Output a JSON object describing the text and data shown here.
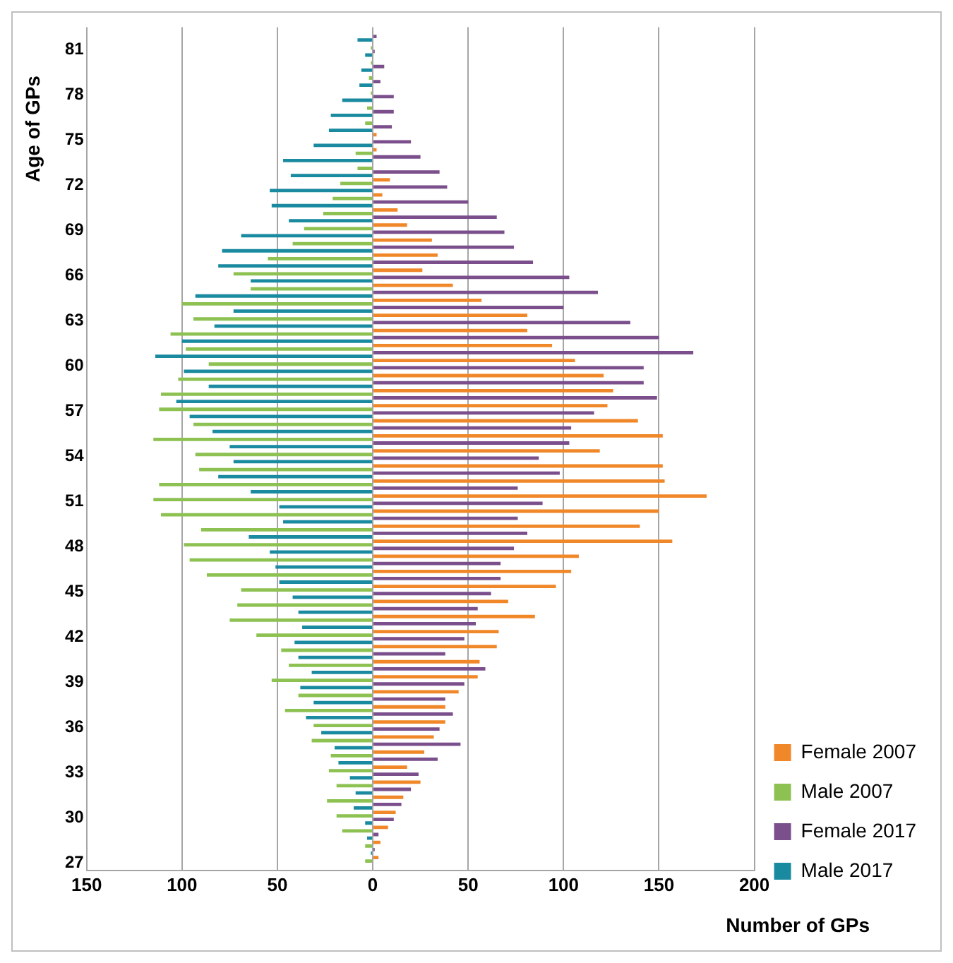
{
  "chart_data": {
    "type": "bar",
    "orientation": "horizontal",
    "xlabel": "Number of GPs",
    "ylabel": "Age of GPs",
    "categories": [
      null,
      "81",
      null,
      null,
      "78",
      null,
      null,
      "75",
      null,
      null,
      "72",
      null,
      null,
      "69",
      null,
      null,
      "66",
      null,
      null,
      "63",
      null,
      null,
      "60",
      null,
      null,
      "57",
      null,
      null,
      "54",
      null,
      null,
      "51",
      null,
      null,
      "48",
      null,
      null,
      "45",
      null,
      null,
      "42",
      null,
      null,
      "39",
      null,
      null,
      "36",
      null,
      null,
      "33",
      null,
      null,
      "30",
      null,
      null,
      "27"
    ],
    "series": [
      {
        "name": "Female 2007",
        "color": "#f0882a",
        "values": [
          0,
          0,
          0,
          0,
          0,
          0,
          0,
          2,
          2,
          0,
          9,
          5,
          13,
          18,
          31,
          34,
          26,
          42,
          57,
          81,
          81,
          94,
          106,
          121,
          126,
          123,
          139,
          152,
          119,
          152,
          153,
          175,
          150,
          140,
          157,
          108,
          104,
          96,
          71,
          85,
          66,
          65,
          56,
          55,
          45,
          38,
          38,
          32,
          27,
          18,
          25,
          16,
          12,
          8,
          4,
          3
        ]
      },
      {
        "name": "Male 2007",
        "color": "#8dc152",
        "values": [
          0,
          -1,
          -1,
          -2,
          -1,
          -3,
          -4,
          0,
          -9,
          -8,
          -17,
          -21,
          -26,
          -36,
          -42,
          -55,
          -73,
          -64,
          -100,
          -94,
          -106,
          -98,
          -86,
          -102,
          -111,
          -112,
          -94,
          -115,
          -93,
          -91,
          -112,
          -115,
          -111,
          -90,
          -99,
          -96,
          -87,
          -69,
          -71,
          -75,
          -61,
          -48,
          -44,
          -53,
          -39,
          -46,
          -31,
          -32,
          -22,
          -23,
          -19,
          -24,
          -19,
          -16,
          -4,
          -4
        ]
      },
      {
        "name": "Female 2017",
        "color": "#7a4f8c",
        "values": [
          2,
          1,
          6,
          4,
          11,
          11,
          10,
          20,
          25,
          35,
          39,
          50,
          65,
          69,
          74,
          84,
          103,
          118,
          100,
          135,
          150,
          168,
          142,
          142,
          149,
          116,
          104,
          103,
          87,
          98,
          76,
          89,
          76,
          81,
          74,
          67,
          67,
          62,
          55,
          54,
          48,
          38,
          59,
          48,
          38,
          42,
          35,
          46,
          34,
          24,
          20,
          15,
          11,
          3,
          1,
          0
        ]
      },
      {
        "name": "Male 2017",
        "color": "#1a8aa0",
        "values": [
          -8,
          -4,
          -6,
          -7,
          -16,
          -22,
          -23,
          -31,
          -47,
          -43,
          -54,
          -53,
          -44,
          -69,
          -79,
          -81,
          -64,
          -93,
          -73,
          -83,
          -100,
          -114,
          -99,
          -86,
          -103,
          -96,
          -84,
          -75,
          -73,
          -81,
          -64,
          -49,
          -47,
          -65,
          -54,
          -51,
          -49,
          -42,
          -39,
          -37,
          -41,
          -39,
          -32,
          -38,
          -31,
          -35,
          -27,
          -20,
          -18,
          -12,
          -9,
          -10,
          -4,
          -3,
          -1,
          0
        ]
      }
    ],
    "xlim": [
      -150,
      200
    ],
    "xticks": [
      {
        "value": -150,
        "label": "150"
      },
      {
        "value": -100,
        "label": "100"
      },
      {
        "value": -50,
        "label": "50"
      },
      0,
      50,
      100,
      150,
      200
    ],
    "grid": "x",
    "legend": "right"
  }
}
